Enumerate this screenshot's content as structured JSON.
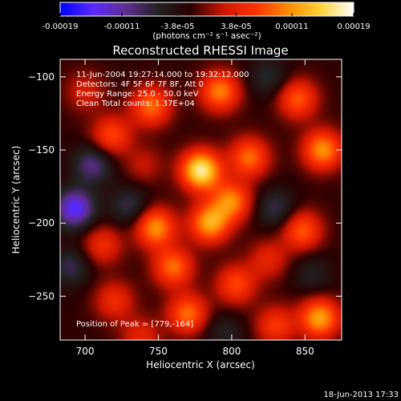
{
  "chart_data": {
    "type": "heatmap",
    "title": "Reconstructed RHESSI Image",
    "xlabel": "Heliocentric X (arcsec)",
    "ylabel": "Heliocentric Y (arcsec)",
    "xlim": [
      683,
      875
    ],
    "ylim": [
      -280,
      -88
    ],
    "x_ticks": [
      700,
      750,
      800,
      850
    ],
    "y_ticks": [
      -100,
      -150,
      -200,
      -250
    ],
    "colorbar": {
      "min": -0.00019,
      "max": 0.00019,
      "tick_values": [
        -0.00019,
        -0.00011,
        -3.8e-05,
        3.8e-05,
        0.00011,
        0.00019
      ],
      "tick_labels": [
        "-0.00019",
        "-0.00011",
        "-3.8e-05",
        "3.8e-05",
        "0.00011",
        "0.00019"
      ],
      "unit_label": "(photons cm⁻² s⁻¹ asec⁻²)",
      "colors": [
        "#0000ff",
        "#5a2aff",
        "#5e2e92",
        "#222222",
        "#2a0000",
        "#cc1500",
        "#ff3300",
        "#ff8a00",
        "#ffd43a",
        "#ffffff"
      ]
    },
    "annotations": [
      "11-Jun-2004 19:27:14.000 to 19:32:12.000",
      "Detectors: 4F 5F 6F 7F 8F, Att 0",
      "Energy Range: 25.0 - 50.0 keV",
      "Clean    Total counts: 1.37E+04"
    ],
    "peak_label": "Position of Peak = [779,-164]",
    "peak": {
      "x": 779,
      "y": -164
    },
    "sources": [
      {
        "x": 700,
        "y": -110,
        "v": 5e-05
      },
      {
        "x": 718,
        "y": -140,
        "v": 9e-05
      },
      {
        "x": 745,
        "y": -120,
        "v": 0.00011
      },
      {
        "x": 779,
        "y": -164,
        "v": 0.00019
      },
      {
        "x": 792,
        "y": -110,
        "v": 0.00012
      },
      {
        "x": 845,
        "y": -115,
        "v": 0.0001
      },
      {
        "x": 862,
        "y": -150,
        "v": 0.00013
      },
      {
        "x": 812,
        "y": -155,
        "v": 0.00011
      },
      {
        "x": 800,
        "y": -185,
        "v": 0.00012
      },
      {
        "x": 785,
        "y": -200,
        "v": 0.00014
      },
      {
        "x": 748,
        "y": -203,
        "v": 0.00013
      },
      {
        "x": 712,
        "y": -215,
        "v": 7e-05
      },
      {
        "x": 760,
        "y": -230,
        "v": 0.00011
      },
      {
        "x": 770,
        "y": -262,
        "v": 0.00011
      },
      {
        "x": 803,
        "y": -242,
        "v": 9e-05
      },
      {
        "x": 848,
        "y": -205,
        "v": 0.0001
      },
      {
        "x": 860,
        "y": -265,
        "v": 0.00014
      },
      {
        "x": 830,
        "y": -270,
        "v": 8e-05
      },
      {
        "x": 720,
        "y": -253,
        "v": 7e-05
      },
      {
        "x": 740,
        "y": -160,
        "v": 4e-05
      },
      {
        "x": 825,
        "y": -225,
        "v": 6e-05
      },
      {
        "x": 738,
        "y": -278,
        "v": 6e-05
      },
      {
        "x": 693,
        "y": -190,
        "v": -0.00013
      },
      {
        "x": 705,
        "y": -160,
        "v": -8e-05
      },
      {
        "x": 730,
        "y": -188,
        "v": -6e-05
      },
      {
        "x": 690,
        "y": -230,
        "v": -6e-05
      },
      {
        "x": 825,
        "y": -100,
        "v": -5e-05
      },
      {
        "x": 830,
        "y": -190,
        "v": -6e-05
      },
      {
        "x": 795,
        "y": -275,
        "v": -4e-05
      },
      {
        "x": 855,
        "y": -235,
        "v": -4e-05
      }
    ],
    "grid": false
  },
  "footer": {
    "date": "18-Jun-2013 17:33"
  }
}
